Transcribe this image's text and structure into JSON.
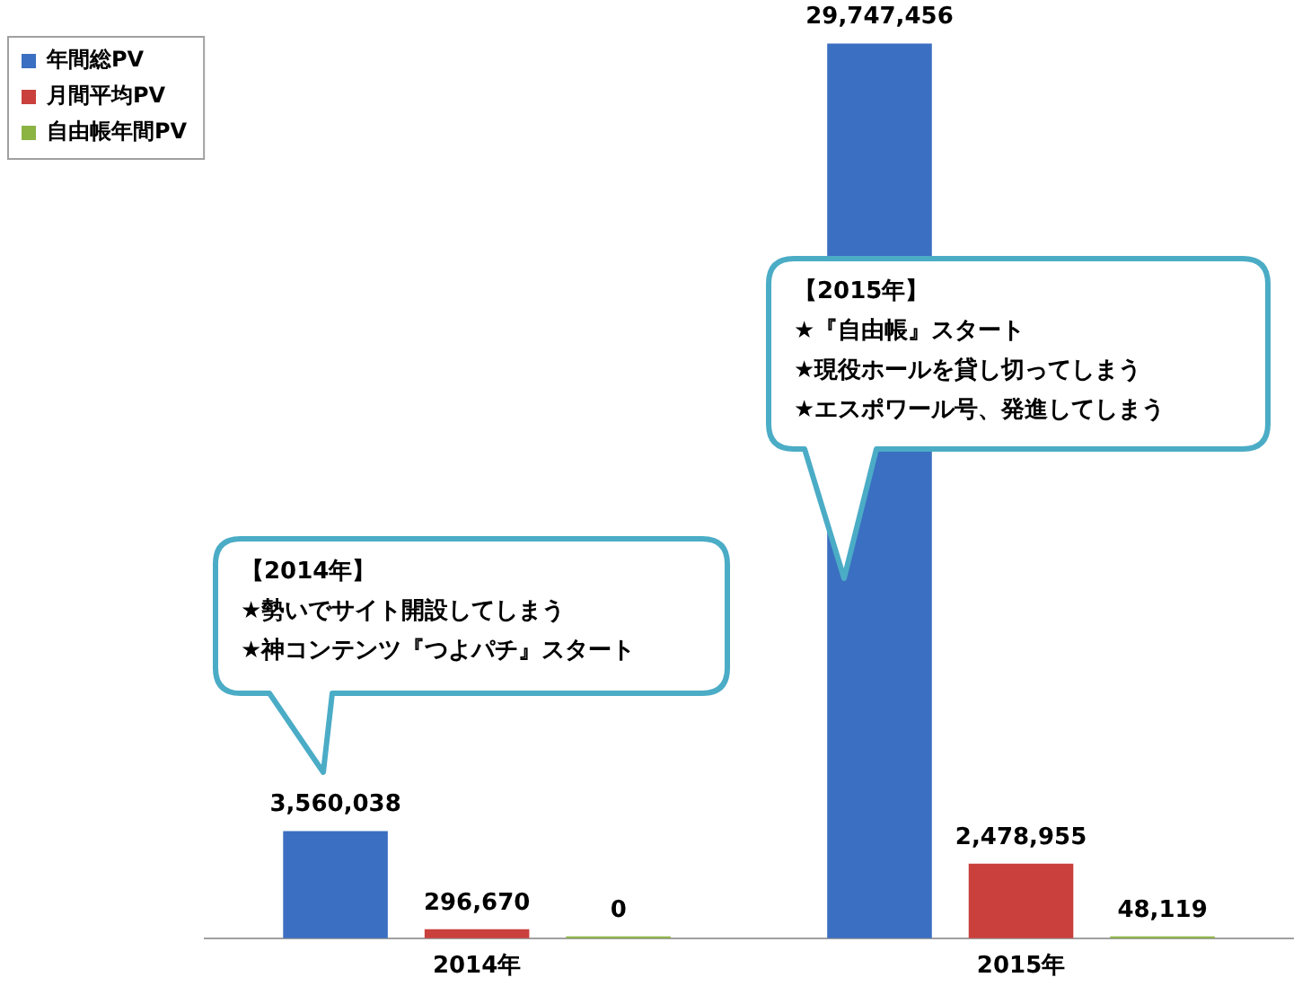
{
  "chart_data": {
    "type": "bar",
    "categories": [
      "2014年",
      "2015年"
    ],
    "series": [
      {
        "name": "年間総PV",
        "color": "#3b6fc1",
        "values": [
          3560038,
          29747456
        ],
        "value_labels": [
          "3,560,038",
          "29,747,456"
        ]
      },
      {
        "name": "月間平均PV",
        "color": "#c9403d",
        "values": [
          296670,
          2478955
        ],
        "value_labels": [
          "296,670",
          "2,478,955"
        ]
      },
      {
        "name": "自由帳年間PV",
        "color": "#8cb443",
        "values": [
          0,
          48119
        ],
        "value_labels": [
          "0",
          "48,119"
        ]
      }
    ],
    "legend": "top left",
    "grid": false,
    "annotations": [
      "【2014年】\n★勢いでサイト開設してしまう\n★神コンテンツ『つよパチ』スタート",
      "【2015年】\n★『自由帳』スタート\n★現役ホールを貸し切ってしまう\n★エスポワール号、発進してしまう"
    ]
  }
}
